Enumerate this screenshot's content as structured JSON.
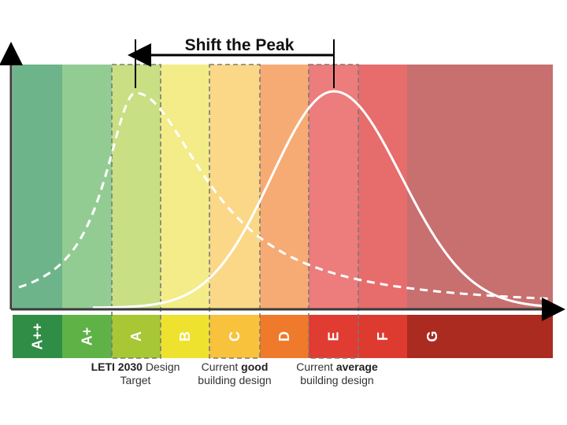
{
  "title": "Shift the Peak",
  "bands": [
    {
      "name": "A++",
      "bg": "#6db48a",
      "bar": "#2f8d46"
    },
    {
      "name": "A+",
      "bg": "#93cc93",
      "bar": "#5fb246"
    },
    {
      "name": "A",
      "bg": "#c8df84",
      "bar": "#a8c734"
    },
    {
      "name": "B",
      "bg": "#f3ec88",
      "bar": "#eee22f"
    },
    {
      "name": "C",
      "bg": "#fad888",
      "bar": "#f9c23c"
    },
    {
      "name": "D",
      "bg": "#f6ab74",
      "bar": "#f07a2b"
    },
    {
      "name": "E",
      "bg": "#ec7d7c",
      "bar": "#e03c32"
    },
    {
      "name": "F",
      "bg": "#e76c6c",
      "bar": "#dd3b30"
    },
    {
      "name": "G",
      "bg": "#c86f6f",
      "bar": "#ab2b21"
    }
  ],
  "labels": {
    "leti": {
      "bold": "LETI 2030",
      "rest": " Design",
      "line2": "Target"
    },
    "good": {
      "pre": "Current ",
      "bold": "good",
      "line2": "building design"
    },
    "average": {
      "pre": "Current ",
      "bold": "average",
      "line2": "building design"
    }
  }
}
